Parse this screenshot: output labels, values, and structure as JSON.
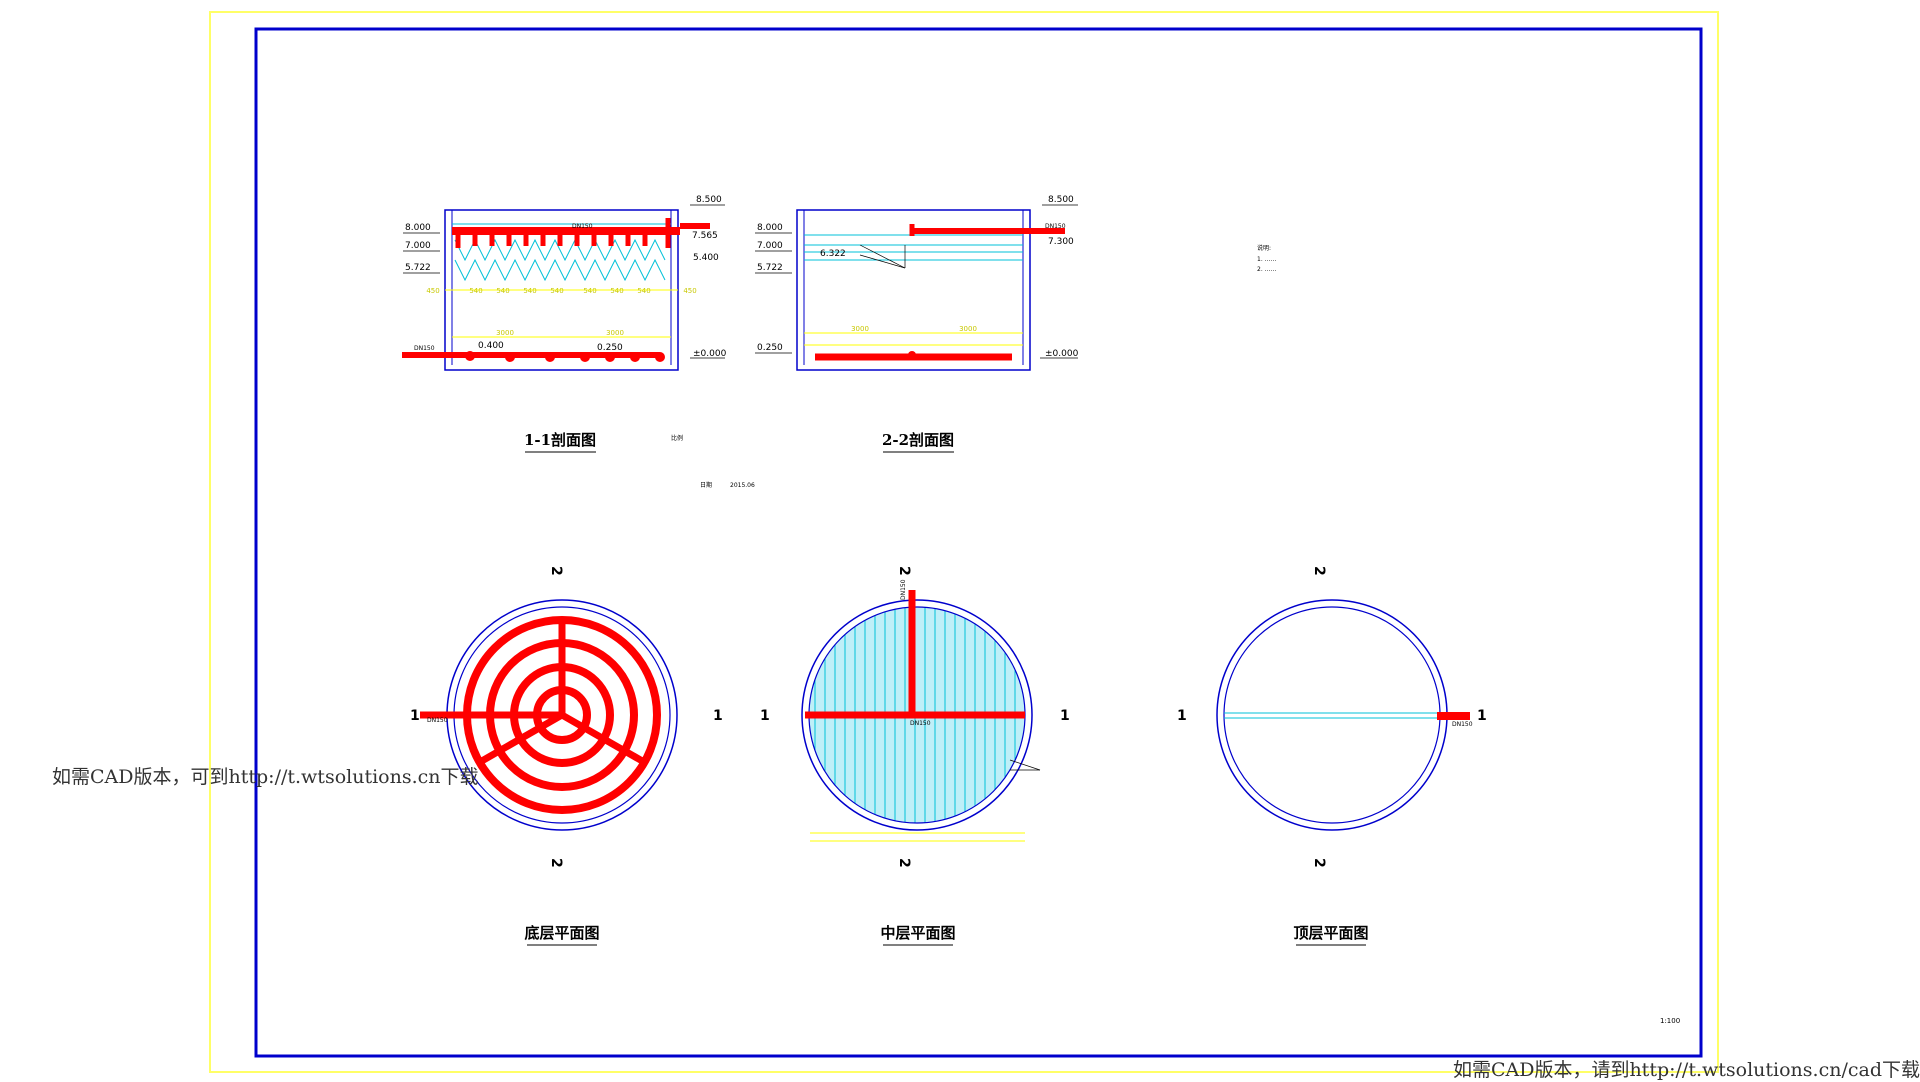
{
  "colors": {
    "sheet_border": "#ffff66",
    "frame": "#0000cc",
    "pipe": "#ff0000",
    "dim": "#ffff00",
    "water": "#00c0d8",
    "wall": "#0000cc",
    "text": "#000000"
  },
  "section_1": {
    "title": "1-1剖面图",
    "elevations_left": [
      "8.000",
      "7.000",
      "5.722",
      "0.400"
    ],
    "elevations_right": [
      "8.500",
      "7.565",
      "5.400",
      "±0.000"
    ],
    "pipe_label_top": "DN150",
    "pipe_label_bottom": "DN150",
    "bottom_level": "0.250",
    "dims_top": [
      "450",
      "540",
      "540",
      "540",
      "540",
      "540",
      "540",
      "540",
      "540",
      "450"
    ],
    "dims_bottom": [
      "3000",
      "3000"
    ]
  },
  "section_2": {
    "title": "2-2剖面图",
    "elevations_left": [
      "8.000",
      "7.000",
      "6.322",
      "5.722",
      "0.250"
    ],
    "elevations_right": [
      "8.500",
      "7.300",
      "±0.000"
    ],
    "pipe_label": "DN150",
    "dims_bottom": [
      "3000",
      "3000"
    ]
  },
  "notes": {
    "heading": "说明:",
    "items": [
      "1.  ……",
      "2.  ……"
    ]
  },
  "small_labels": {
    "center_mark": "比例",
    "date_label": "日期",
    "date_value": "2015.06",
    "scale": "1:100"
  },
  "plan_bottom": {
    "title": "底层平面图",
    "pipe_label": "DN150"
  },
  "plan_middle": {
    "title": "中层平面图",
    "pipe_label": "DN150",
    "riser_label": "DN150"
  },
  "plan_top": {
    "title": "顶层平面图",
    "pipe_label": "DN150"
  },
  "section_marks": {
    "one": "1",
    "two": "2"
  },
  "watermark_1": "如需CAD版本，可到http://t.wtsolutions.cn下载",
  "watermark_2": "如需CAD版本，请到http://t.wtsolutions.cn/cad下载"
}
